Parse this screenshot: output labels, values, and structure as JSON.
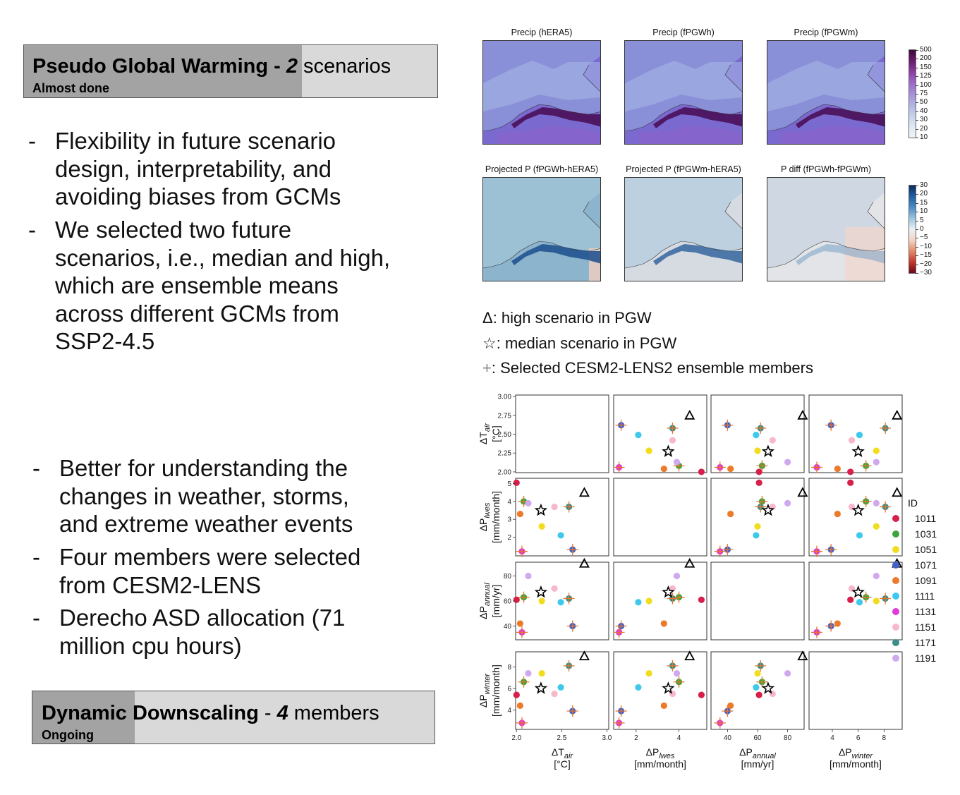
{
  "pgw_banner": {
    "bold": "Pseudo Global Warming - ",
    "num": "2",
    "rest": " scenarios",
    "status": "Almost done"
  },
  "pgw_bullets": [
    [
      "Flexibility in future scenario",
      "design, interpretability, and",
      "avoiding biases from GCMs"
    ],
    [
      "We selected two future",
      "scenarios, i.e., median and high,",
      "which are ensemble means",
      "across different GCMs from",
      "SSP2-4.5"
    ]
  ],
  "dd_bullets": [
    [
      "Better for understanding the",
      "changes in weather, storms,",
      "and extreme weather events"
    ],
    [
      "Four members were selected",
      "from CESM2-LENS"
    ],
    [
      "Derecho ASD allocation (71",
      "million cpu hours)"
    ]
  ],
  "dd_banner": {
    "bold1": "Dynamic",
    "bold2": " Downscaling",
    "dash": " - ",
    "num": "4",
    "rest": " members",
    "status": "Ongoing"
  },
  "maps_row1": [
    "Precip (hERA5)",
    "Precip (fPGWh)",
    "Precip (fPGWm)"
  ],
  "maps_row2": [
    "Projected P (fPGWh-hERA5)",
    "Projected P (fPGWm-hERA5)",
    "P diff (fPGWh-fPGWm)"
  ],
  "cbar1_ticks": [
    "500",
    "200",
    "150",
    "125",
    "100",
    "75",
    "50",
    "40",
    "30",
    "20",
    "10"
  ],
  "cbar2_ticks": [
    "30",
    "20",
    "15",
    "10",
    "5",
    "0",
    "−5",
    "−10",
    "−15",
    "−20",
    "−30"
  ],
  "legend": [
    {
      "symbol": "Δ",
      "text": ": high scenario in PGW"
    },
    {
      "symbol": "☆",
      "text": ": median scenario in PGW"
    },
    {
      "symbol": "+",
      "text": ": Selected CESM2-LENS2 ensemble members"
    }
  ],
  "colors": {
    "1011": "#d6204a",
    "1031": "#3aa53a",
    "1051": "#f2dc1e",
    "1071": "#4262c8",
    "1091": "#ec7a2a",
    "1111": "#3ec8ec",
    "1131": "#e03ad8",
    "1151": "#f7b8cc",
    "1171": "#3a8f8a",
    "1191": "#cfa8ee"
  },
  "chart_data": {
    "type": "scatter",
    "variables": [
      {
        "key": "Tair",
        "base": "ΔT",
        "sub": "air",
        "unit": "[°C]",
        "range": [
          1.99,
          3.02
        ],
        "ticks": [
          "2.00",
          "2.25",
          "2.50",
          "2.75",
          "3.00"
        ],
        "xticks": [
          "2.0",
          "2.5",
          "3.0"
        ]
      },
      {
        "key": "Plwes",
        "base": "ΔP",
        "sub": "lwes",
        "unit": "[mm/month]",
        "range": [
          0.95,
          5.3
        ],
        "ticks": [
          "2",
          "3",
          "4",
          "5"
        ],
        "xticks": [
          "2",
          "4"
        ]
      },
      {
        "key": "Pannual",
        "base": "ΔP",
        "sub": "annual",
        "unit": "[mm/yr]",
        "range": [
          29,
          91
        ],
        "ticks": [
          "40",
          "60",
          "80"
        ],
        "xticks": [
          "40",
          "60",
          "80"
        ]
      },
      {
        "key": "Pwinter",
        "base": "ΔP",
        "sub": "winter",
        "unit": "[mm/month]",
        "range": [
          2.2,
          9.4
        ],
        "ticks": [
          "4",
          "6",
          "8"
        ],
        "xticks": [
          "4",
          "6",
          "8"
        ]
      }
    ],
    "legend_title": "ID",
    "members": [
      {
        "id": "1011",
        "values": [
          2.0,
          5.05,
          61,
          5.4
        ],
        "selected": false
      },
      {
        "id": "1031",
        "values": [
          2.08,
          4.0,
          63,
          6.6
        ],
        "selected": true
      },
      {
        "id": "1051",
        "values": [
          2.28,
          2.6,
          60,
          7.4
        ],
        "selected": false
      },
      {
        "id": "1071",
        "values": [
          2.62,
          1.3,
          40,
          3.9
        ],
        "selected": true
      },
      {
        "id": "1091",
        "values": [
          2.04,
          3.3,
          42,
          4.4
        ],
        "selected": false
      },
      {
        "id": "1111",
        "values": [
          2.49,
          2.1,
          59,
          6.1
        ],
        "selected": false
      },
      {
        "id": "1131",
        "values": [
          2.06,
          1.2,
          35,
          2.8
        ],
        "selected": true
      },
      {
        "id": "1151",
        "values": [
          2.42,
          3.7,
          70,
          5.5
        ],
        "selected": false
      },
      {
        "id": "1171",
        "values": [
          2.58,
          3.7,
          62,
          8.1
        ],
        "selected": true
      },
      {
        "id": "1191",
        "values": [
          2.13,
          3.9,
          80,
          7.4
        ],
        "selected": false
      }
    ],
    "high_scenario": [
      2.75,
      4.5,
      90,
      9.0
    ],
    "median_scenario": [
      2.27,
      3.5,
      67,
      6.0
    ]
  }
}
